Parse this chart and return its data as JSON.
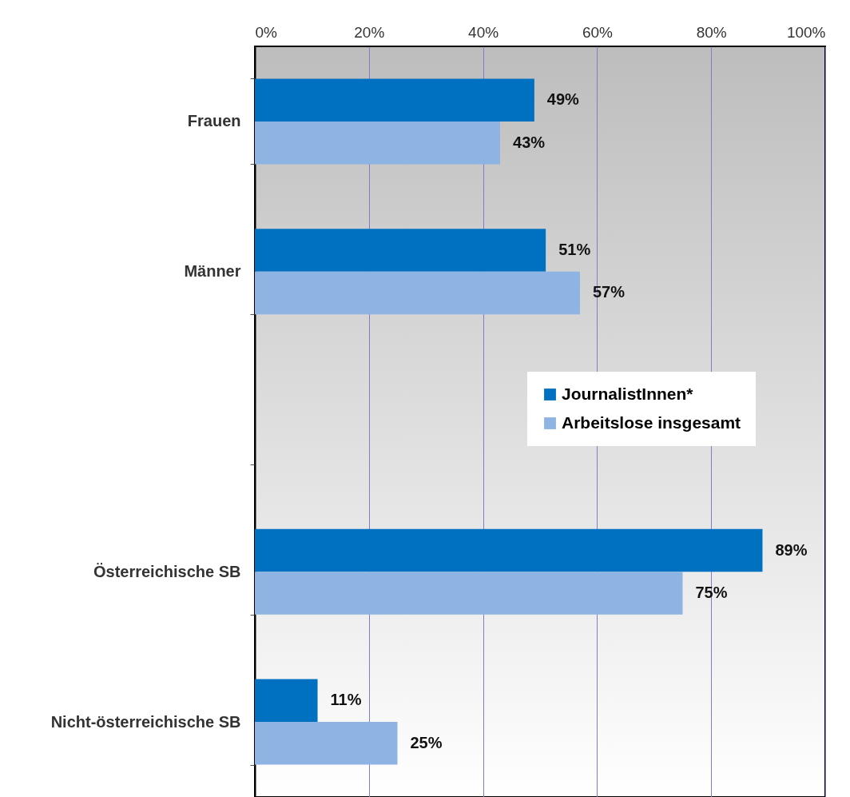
{
  "chart_data": {
    "type": "bar",
    "orientation": "horizontal",
    "categories": [
      "Frauen",
      "Männer",
      null,
      "Österreichische SB",
      "Nicht-österreichische SB"
    ],
    "series": [
      {
        "name": "JournalistInnen*",
        "color": "#0070c0",
        "values": [
          49,
          51,
          null,
          89,
          11
        ],
        "value_labels": [
          "49%",
          "51%",
          null,
          "89%",
          "11%"
        ]
      },
      {
        "name": "Arbeitslose insgesamt",
        "color": "#8db4e2",
        "values": [
          43,
          57,
          null,
          75,
          25
        ],
        "value_labels": [
          "43%",
          "57%",
          null,
          "75%",
          "25%"
        ]
      }
    ],
    "xlim": [
      0,
      100
    ],
    "xticks": [
      {
        "value": 0,
        "label": "0%"
      },
      {
        "value": 20,
        "label": "20%"
      },
      {
        "value": 40,
        "label": "40%"
      },
      {
        "value": 60,
        "label": "60%"
      },
      {
        "value": 80,
        "label": "80%"
      },
      {
        "value": 100,
        "label": "100%"
      }
    ],
    "grid": "x",
    "legend": "right"
  }
}
